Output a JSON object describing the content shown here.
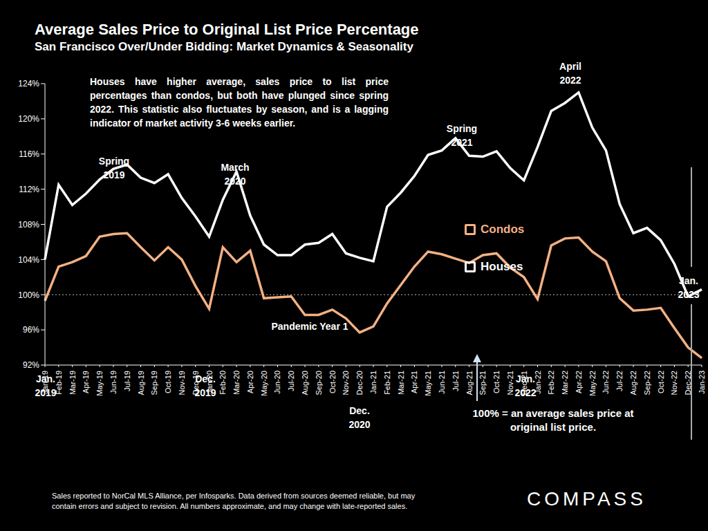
{
  "chart_data": {
    "type": "line",
    "title": "Average Sales Price to Original List Price Percentage",
    "subtitle": "San Francisco Over/Under Bidding: Market Dynamics & Seasonality",
    "categories": [
      "Jan-19",
      "Feb-19",
      "Mar-19",
      "Apr-19",
      "May-19",
      "Jun-19",
      "Jul-19",
      "Aug-19",
      "Sep-19",
      "Oct-19",
      "Nov-19",
      "Dec-19",
      "Jan-20",
      "Feb-20",
      "Mar-20",
      "Apr-20",
      "May-20",
      "Jun-20",
      "Jul-20",
      "Aug-20",
      "Sep-20",
      "Oct-20",
      "Nov-20",
      "Dec-20",
      "Jan-21",
      "Feb-21",
      "Mar-21",
      "Apr-21",
      "May-21",
      "Jun-21",
      "Jul-21",
      "Aug-21",
      "Sep-21",
      "Oct-21",
      "Nov-21",
      "Dec-21",
      "Jan-22",
      "Feb-22",
      "Mar-22",
      "Apr-22",
      "May-22",
      "Jun-22",
      "Jul-22",
      "Aug-22",
      "Sep-22",
      "Oct-22",
      "Nov-22",
      "Dec-22",
      "Jan-23"
    ],
    "series": [
      {
        "name": "Houses",
        "color": "#ffffff",
        "values": [
          104,
          112.5,
          110.2,
          111.5,
          113.1,
          114.3,
          114.8,
          113.3,
          112.7,
          113.7,
          111,
          108.9,
          106.6,
          110.8,
          114,
          109,
          105.7,
          104.5,
          104.5,
          105.7,
          105.9,
          106.9,
          104.7,
          104.2,
          103.8,
          110,
          111.6,
          113.5,
          115.9,
          116.4,
          117.8,
          115.8,
          115.7,
          116.3,
          114.4,
          113,
          116.8,
          120.9,
          121.8,
          123,
          119,
          116.4,
          110.3,
          107,
          107.6,
          106.2,
          103.5,
          99.8,
          100.6
        ]
      },
      {
        "name": "Condos",
        "color": "#f4b183",
        "values": [
          99.3,
          103.2,
          103.7,
          104.4,
          106.6,
          106.9,
          107,
          105.4,
          103.9,
          105.4,
          104,
          101,
          98.4,
          105.4,
          103.7,
          105,
          99.6,
          99.7,
          99.8,
          97.7,
          97.7,
          98.3,
          97.3,
          95.7,
          96.4,
          99,
          101.1,
          103.2,
          104.9,
          104.6,
          104.1,
          103.6,
          104.5,
          104.7,
          103.1,
          102,
          99.5,
          105.6,
          106.4,
          106.5,
          104.9,
          103.8,
          99.6,
          98.2,
          98.3,
          98.5,
          96.2,
          94,
          92.8
        ]
      }
    ],
    "ylim": [
      92,
      124
    ],
    "yticks": [
      {
        "value": 92,
        "label": "92%"
      },
      {
        "value": 96,
        "label": "96%"
      },
      {
        "value": 100,
        "label": "100%"
      },
      {
        "value": 104,
        "label": "104%"
      },
      {
        "value": 108,
        "label": "108%"
      },
      {
        "value": 112,
        "label": "112%"
      },
      {
        "value": 116,
        "label": "116%"
      },
      {
        "value": 120,
        "label": "120%"
      },
      {
        "value": 124,
        "label": "124%"
      }
    ],
    "grid": false,
    "legend": "right",
    "reference_line": {
      "value": 100,
      "label": [
        "100% = an average sales price at",
        "original list price."
      ]
    },
    "annotations": [
      {
        "lines": [
          "Spring",
          "2019"
        ]
      },
      {
        "lines": [
          "March",
          "2020"
        ]
      },
      {
        "lines": [
          "April",
          "2022"
        ]
      },
      {
        "lines": [
          "Spring",
          "2021"
        ]
      },
      {
        "lines": [
          "Jan.",
          "2019"
        ]
      },
      {
        "lines": [
          "Dec.",
          "2019"
        ]
      },
      {
        "lines": [
          "Pandemic Year 1"
        ]
      },
      {
        "lines": [
          "Dec.",
          "2020"
        ]
      },
      {
        "lines": [
          "Jan.",
          "2022"
        ]
      },
      {
        "lines": [
          "Jan.",
          "2023"
        ]
      }
    ],
    "note": "Houses have higher average, sales price to list price percentages than condos, but both have plunged since spring 2022. This statistic also fluctuates by season, and is a lagging indicator of market activity 3-6 weeks earlier.",
    "footer": [
      "Sales reported to NorCal MLS Alliance, per Infosparks. Data derived from sources deemed reliable, but may",
      "contain errors and subject to revision. All numbers approximate, and may change with late-reported sales."
    ],
    "logo": "COMPASS"
  }
}
